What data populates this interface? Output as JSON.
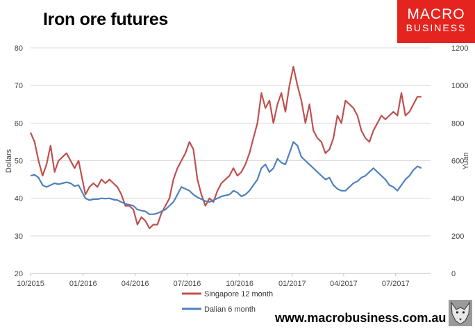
{
  "header": {
    "title": "Iron ore futures"
  },
  "brand": {
    "line1": "MACRO",
    "line2": "BUSINESS",
    "color": "#e5241f"
  },
  "footer": {
    "url": "www.macrobusiness.com.au"
  },
  "chart_data": {
    "type": "line",
    "title": "Iron ore futures",
    "ylabel": "Dollars",
    "y2label": "Yuan",
    "ylim": [
      20,
      80
    ],
    "y2lim": [
      0,
      1200
    ],
    "yticks": [
      20,
      30,
      40,
      50,
      60,
      70,
      80
    ],
    "y2ticks": [
      0,
      200,
      400,
      600,
      800,
      1000,
      1200
    ],
    "xlim": [
      "2015-10",
      "2017-08-31"
    ],
    "xticks": [
      "10/2015",
      "01/2016",
      "04/2016",
      "07/2016",
      "10/2016",
      "01/2017",
      "04/2017",
      "07/2017"
    ],
    "grid": true,
    "legend_position": "bottom",
    "series": [
      {
        "name": "Singapore 12 month",
        "axis": "left",
        "color": "#c0504d",
        "x": [
          "2015-10-01",
          "2015-10-08",
          "2015-10-15",
          "2015-10-22",
          "2015-10-29",
          "2015-11-05",
          "2015-11-12",
          "2015-11-19",
          "2015-11-26",
          "2015-12-03",
          "2015-12-10",
          "2015-12-17",
          "2015-12-24",
          "2016-01-05",
          "2016-01-12",
          "2016-01-19",
          "2016-01-26",
          "2016-02-02",
          "2016-02-09",
          "2016-02-16",
          "2016-02-23",
          "2016-03-01",
          "2016-03-08",
          "2016-03-15",
          "2016-03-22",
          "2016-03-29",
          "2016-04-05",
          "2016-04-12",
          "2016-04-19",
          "2016-04-26",
          "2016-05-03",
          "2016-05-10",
          "2016-05-17",
          "2016-05-24",
          "2016-05-31",
          "2016-06-07",
          "2016-06-14",
          "2016-06-21",
          "2016-06-28",
          "2016-07-05",
          "2016-07-12",
          "2016-07-19",
          "2016-07-26",
          "2016-08-02",
          "2016-08-09",
          "2016-08-16",
          "2016-08-23",
          "2016-08-30",
          "2016-09-06",
          "2016-09-13",
          "2016-09-20",
          "2016-09-27",
          "2016-10-04",
          "2016-10-11",
          "2016-10-18",
          "2016-10-25",
          "2016-11-01",
          "2016-11-08",
          "2016-11-15",
          "2016-11-22",
          "2016-11-29",
          "2016-12-06",
          "2016-12-13",
          "2016-12-20",
          "2016-12-27",
          "2017-01-03",
          "2017-01-10",
          "2017-01-17",
          "2017-01-24",
          "2017-01-31",
          "2017-02-07",
          "2017-02-14",
          "2017-02-21",
          "2017-02-28",
          "2017-03-07",
          "2017-03-14",
          "2017-03-21",
          "2017-03-28",
          "2017-04-04",
          "2017-04-11",
          "2017-04-18",
          "2017-04-25",
          "2017-05-02",
          "2017-05-09",
          "2017-05-16",
          "2017-05-23",
          "2017-05-30",
          "2017-06-06",
          "2017-06-13",
          "2017-06-20",
          "2017-06-27",
          "2017-07-04",
          "2017-07-11",
          "2017-07-18",
          "2017-07-25",
          "2017-08-01",
          "2017-08-08",
          "2017-08-15"
        ],
        "values": [
          57.5,
          55,
          50,
          46,
          49,
          54,
          47,
          50,
          51,
          52,
          50,
          48,
          50,
          41,
          43,
          44,
          43,
          45,
          44,
          45,
          44,
          43,
          41,
          38,
          38,
          37,
          33,
          35,
          34,
          32,
          33,
          33,
          36,
          38,
          40,
          45,
          48,
          50,
          52,
          55,
          53,
          45,
          41,
          38,
          40,
          39,
          42,
          44,
          45,
          46,
          48,
          46,
          47,
          49,
          52,
          56,
          60,
          68,
          64,
          66,
          60,
          65,
          68,
          63,
          70,
          75,
          70,
          66,
          60,
          65,
          58,
          56,
          55,
          52,
          53,
          56,
          62,
          60,
          66,
          65,
          64,
          62,
          58,
          56,
          55,
          58,
          60,
          62,
          61,
          62,
          63,
          62,
          68,
          62,
          63,
          65,
          67,
          67
        ]
      },
      {
        "name": "Dalian 6 month",
        "axis": "right",
        "color": "#4f81bd",
        "x": [
          "2015-10-01",
          "2015-10-08",
          "2015-10-15",
          "2015-10-22",
          "2015-10-29",
          "2015-11-05",
          "2015-11-12",
          "2015-11-19",
          "2015-11-26",
          "2015-12-03",
          "2015-12-10",
          "2015-12-17",
          "2015-12-24",
          "2016-01-05",
          "2016-01-12",
          "2016-01-19",
          "2016-01-26",
          "2016-02-02",
          "2016-02-09",
          "2016-02-16",
          "2016-02-23",
          "2016-03-01",
          "2016-03-08",
          "2016-03-15",
          "2016-03-22",
          "2016-03-29",
          "2016-04-05",
          "2016-04-12",
          "2016-04-19",
          "2016-04-26",
          "2016-05-03",
          "2016-05-10",
          "2016-05-17",
          "2016-05-24",
          "2016-05-31",
          "2016-06-07",
          "2016-06-14",
          "2016-06-21",
          "2016-06-28",
          "2016-07-05",
          "2016-07-12",
          "2016-07-19",
          "2016-07-26",
          "2016-08-02",
          "2016-08-09",
          "2016-08-16",
          "2016-08-23",
          "2016-08-30",
          "2016-09-06",
          "2016-09-13",
          "2016-09-20",
          "2016-09-27",
          "2016-10-04",
          "2016-10-11",
          "2016-10-18",
          "2016-10-25",
          "2016-11-01",
          "2016-11-08",
          "2016-11-15",
          "2016-11-22",
          "2016-11-29",
          "2016-12-06",
          "2016-12-13",
          "2016-12-20",
          "2016-12-27",
          "2017-01-03",
          "2017-01-10",
          "2017-01-17",
          "2017-01-24",
          "2017-01-31",
          "2017-02-07",
          "2017-02-14",
          "2017-02-21",
          "2017-02-28",
          "2017-03-07",
          "2017-03-14",
          "2017-03-21",
          "2017-03-28",
          "2017-04-04",
          "2017-04-11",
          "2017-04-18",
          "2017-04-25",
          "2017-05-02",
          "2017-05-09",
          "2017-05-16",
          "2017-05-23",
          "2017-05-30",
          "2017-06-06",
          "2017-06-13",
          "2017-06-20",
          "2017-06-27",
          "2017-07-04",
          "2017-07-11",
          "2017-07-18",
          "2017-07-25",
          "2017-08-01",
          "2017-08-08",
          "2017-08-15"
        ],
        "values": [
          520,
          525,
          510,
          470,
          460,
          470,
          480,
          475,
          480,
          485,
          480,
          465,
          470,
          400,
          390,
          395,
          395,
          400,
          398,
          400,
          393,
          390,
          380,
          370,
          365,
          360,
          340,
          335,
          330,
          315,
          315,
          320,
          330,
          340,
          360,
          380,
          420,
          460,
          450,
          440,
          420,
          405,
          395,
          385,
          380,
          390,
          400,
          410,
          415,
          420,
          440,
          430,
          410,
          420,
          440,
          470,
          500,
          560,
          580,
          540,
          560,
          610,
          590,
          580,
          640,
          700,
          680,
          620,
          600,
          580,
          560,
          540,
          520,
          500,
          510,
          470,
          450,
          440,
          440,
          460,
          480,
          490,
          510,
          520,
          540,
          560,
          540,
          520,
          500,
          470,
          460,
          440,
          470,
          500,
          520,
          550,
          570,
          560
        ]
      }
    ]
  }
}
